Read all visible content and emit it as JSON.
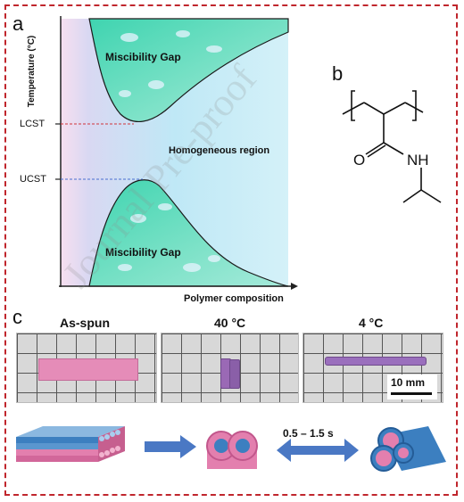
{
  "panel_a": {
    "letter": "a",
    "y_axis_label": "Temperature (°C)",
    "x_axis_label": "Polymer composition",
    "lcst_label": "LCST",
    "ucst_label": "UCST",
    "upper_region": "Miscibility Gap",
    "lower_region": "Miscibility Gap",
    "middle_region": "Homogeneous region"
  },
  "panel_b": {
    "letter": "b",
    "nh_label": "NH",
    "o_label": "O"
  },
  "panel_c": {
    "letter": "c",
    "photo1_label": "As-spun",
    "photo2_label": "40 °C",
    "photo3_label": "4 °C",
    "scale_bar": "10 mm",
    "time_label": "0.5 – 1.5 s"
  },
  "watermark": "Journal Pre-proof",
  "colors": {
    "frame": "#c0262d",
    "gap_fill": "#5ed8b6",
    "homogeneous": "#b8e8f5",
    "arrow": "#4a78c4",
    "film_pink": "#e37fae",
    "film_blue": "#3c7fc0"
  }
}
